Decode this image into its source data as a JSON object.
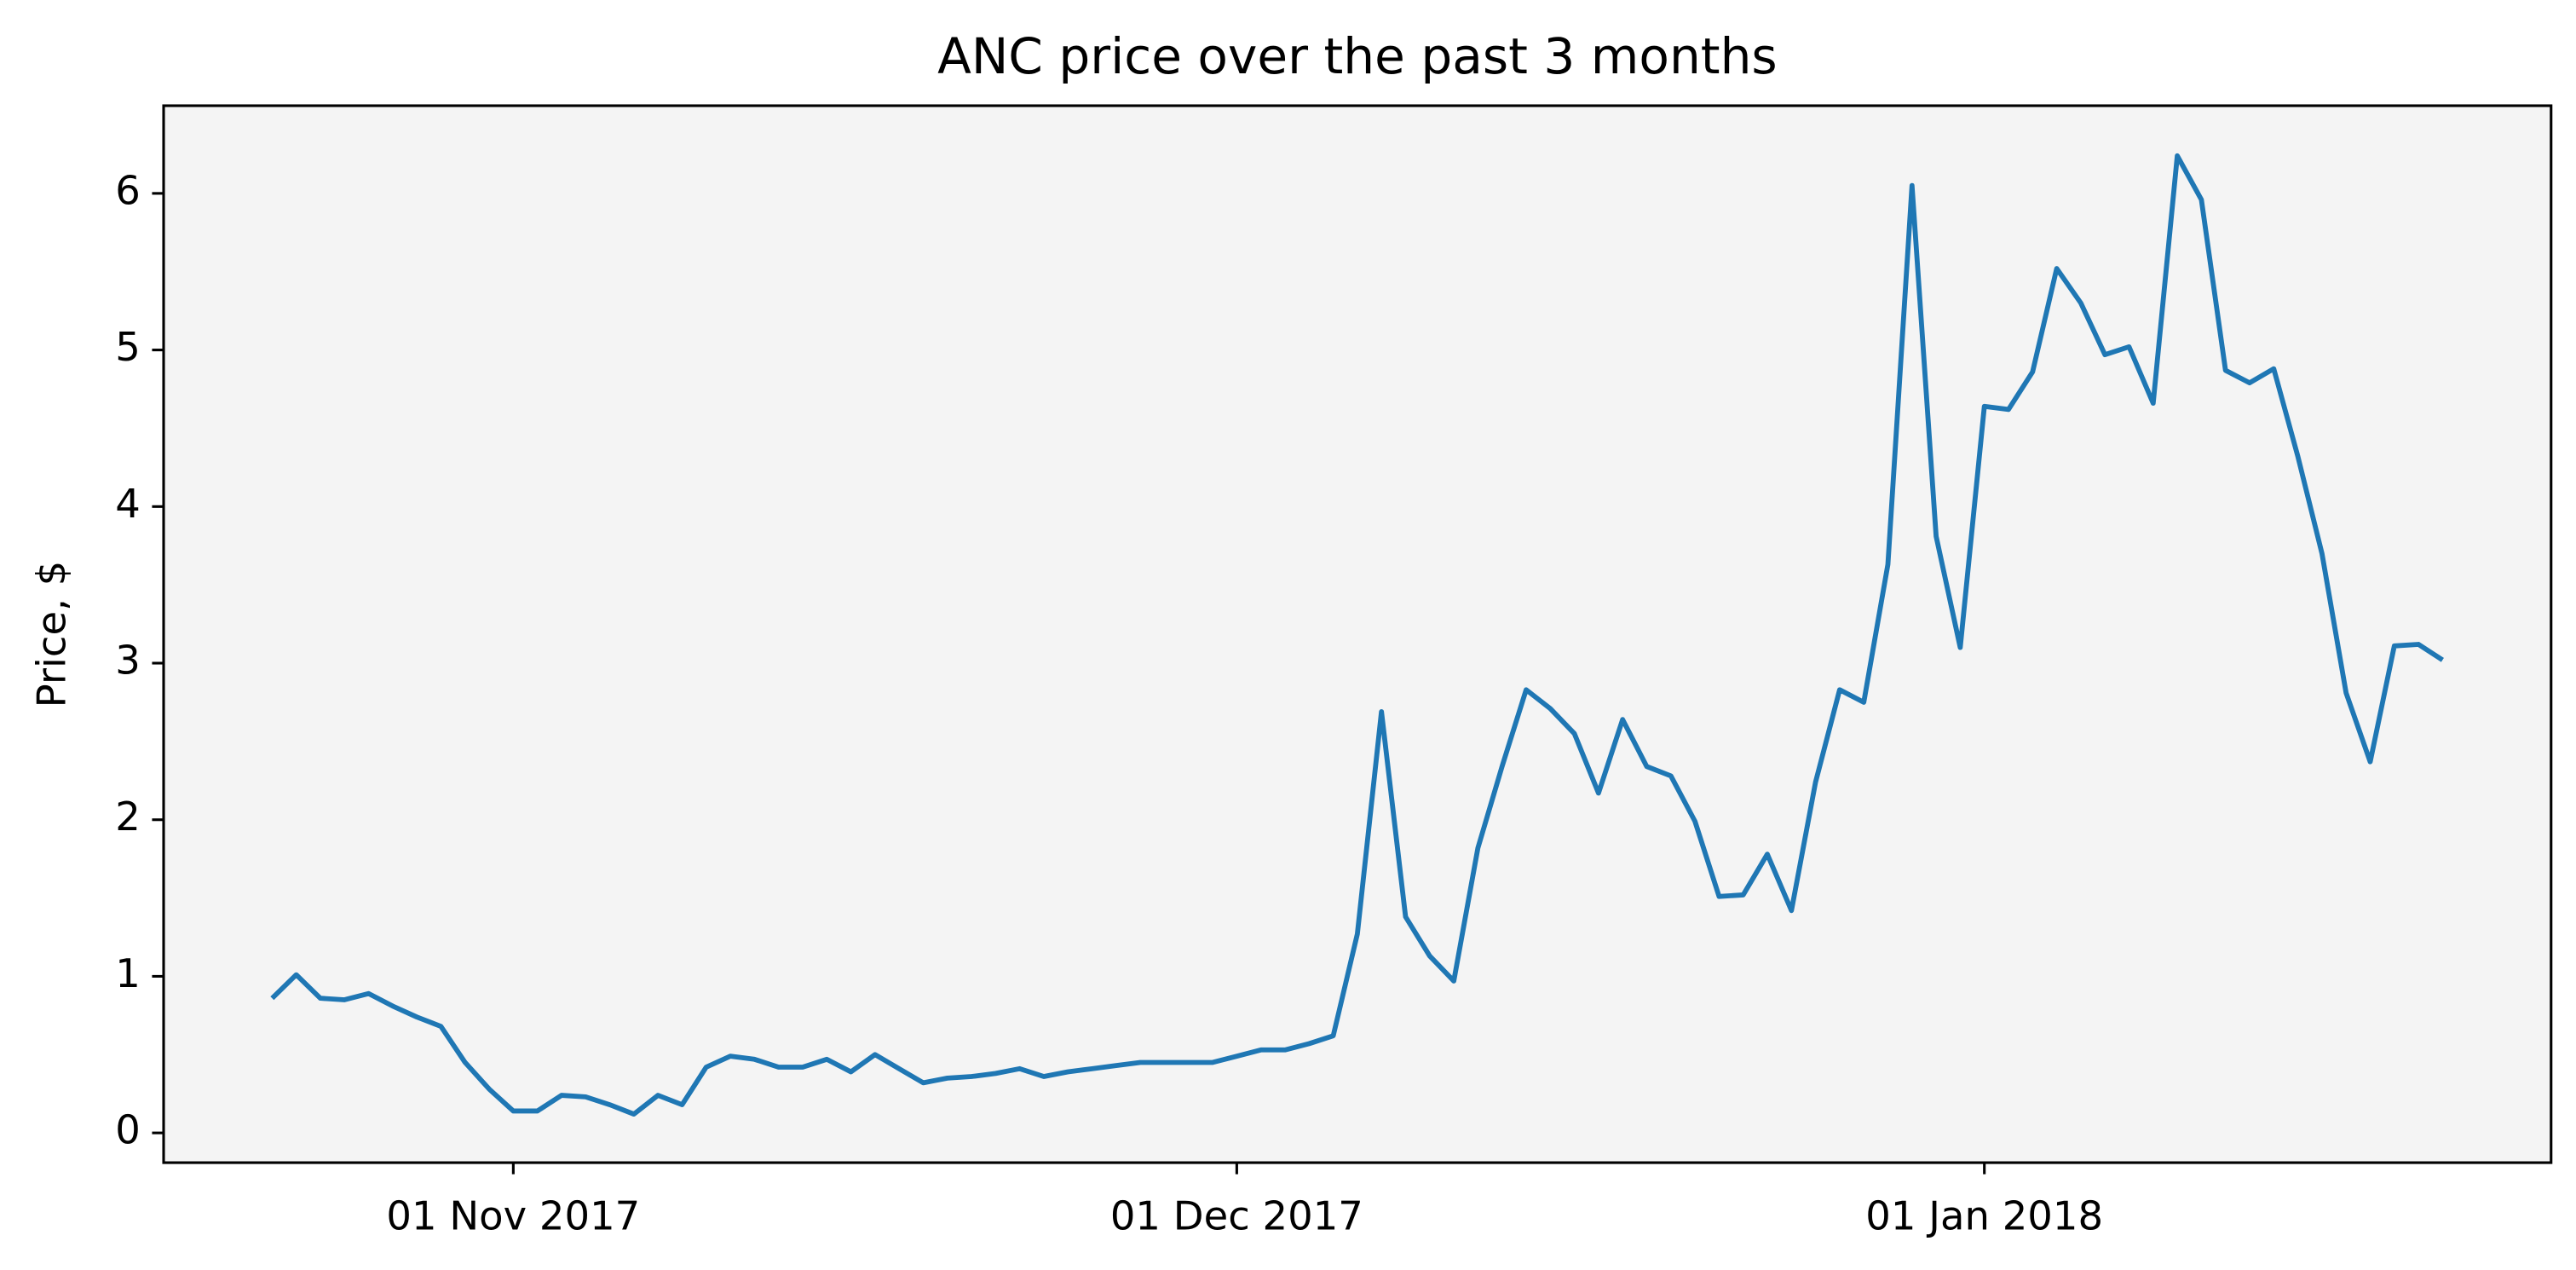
{
  "chart_data": {
    "type": "line",
    "title": "ANC price over the past 3 months",
    "y_label": "Price, $",
    "color": "#1f77b4",
    "background": "#f4f4f4",
    "x": [
      "2017-10-22",
      "2017-10-23",
      "2017-10-24",
      "2017-10-25",
      "2017-10-26",
      "2017-10-27",
      "2017-10-28",
      "2017-10-29",
      "2017-10-30",
      "2017-10-31",
      "2017-11-01",
      "2017-11-02",
      "2017-11-03",
      "2017-11-04",
      "2017-11-05",
      "2017-11-06",
      "2017-11-07",
      "2017-11-08",
      "2017-11-09",
      "2017-11-10",
      "2017-11-11",
      "2017-11-12",
      "2017-11-13",
      "2017-11-14",
      "2017-11-15",
      "2017-11-16",
      "2017-11-17",
      "2017-11-18",
      "2017-11-19",
      "2017-11-20",
      "2017-11-21",
      "2017-11-22",
      "2017-11-23",
      "2017-11-24",
      "2017-11-25",
      "2017-11-26",
      "2017-11-27",
      "2017-11-28",
      "2017-11-29",
      "2017-11-30",
      "2017-12-01",
      "2017-12-02",
      "2017-12-03",
      "2017-12-04",
      "2017-12-05",
      "2017-12-06",
      "2017-12-07",
      "2017-12-08",
      "2017-12-09",
      "2017-12-10",
      "2017-12-11",
      "2017-12-12",
      "2017-12-13",
      "2017-12-14",
      "2017-12-15",
      "2017-12-16",
      "2017-12-17",
      "2017-12-18",
      "2017-12-19",
      "2017-12-20",
      "2017-12-21",
      "2017-12-22",
      "2017-12-23",
      "2017-12-24",
      "2017-12-25",
      "2017-12-26",
      "2017-12-27",
      "2017-12-28",
      "2017-12-29",
      "2017-12-30",
      "2017-12-31",
      "2018-01-01",
      "2018-01-02",
      "2018-01-03",
      "2018-01-04",
      "2018-01-05",
      "2018-01-06",
      "2018-01-07",
      "2018-01-08",
      "2018-01-09",
      "2018-01-10",
      "2018-01-11",
      "2018-01-12",
      "2018-01-13",
      "2018-01-14",
      "2018-01-15",
      "2018-01-16",
      "2018-01-17",
      "2018-01-18",
      "2018-01-19",
      "2018-01-20"
    ],
    "values": [
      0.86,
      1.01,
      0.86,
      0.85,
      0.89,
      0.81,
      0.74,
      0.68,
      0.45,
      0.28,
      0.14,
      0.14,
      0.24,
      0.23,
      0.18,
      0.12,
      0.24,
      0.18,
      0.42,
      0.49,
      0.47,
      0.42,
      0.42,
      0.47,
      0.39,
      0.5,
      0.41,
      0.32,
      0.35,
      0.36,
      0.38,
      0.41,
      0.36,
      0.39,
      0.41,
      0.43,
      0.45,
      0.45,
      0.45,
      0.45,
      0.49,
      0.53,
      0.53,
      0.57,
      0.62,
      1.27,
      2.69,
      1.38,
      1.13,
      0.97,
      1.82,
      2.34,
      2.83,
      2.71,
      2.55,
      2.17,
      2.64,
      2.34,
      2.28,
      1.99,
      1.51,
      1.52,
      1.78,
      1.42,
      2.24,
      2.83,
      2.75,
      3.63,
      6.05,
      3.81,
      3.1,
      4.64,
      4.62,
      4.86,
      5.52,
      5.3,
      4.97,
      5.02,
      4.66,
      6.24,
      5.96,
      4.87,
      4.79,
      4.88,
      4.32,
      3.7,
      2.81,
      2.37,
      3.11,
      3.12,
      3.02
    ],
    "xlim": [
      "2017-10-17T12:00Z",
      "2018-01-24T12:00Z"
    ],
    "xticks": [
      {
        "value": "2017-11-01",
        "label": "01 Nov 2017"
      },
      {
        "value": "2017-12-01",
        "label": "01 Dec 2017"
      },
      {
        "value": "2018-01-01",
        "label": "01 Jan 2018"
      }
    ],
    "ylim": [
      -0.19,
      6.56
    ],
    "yticks": [
      0,
      1,
      2,
      3,
      4,
      5,
      6
    ],
    "grid": false
  }
}
